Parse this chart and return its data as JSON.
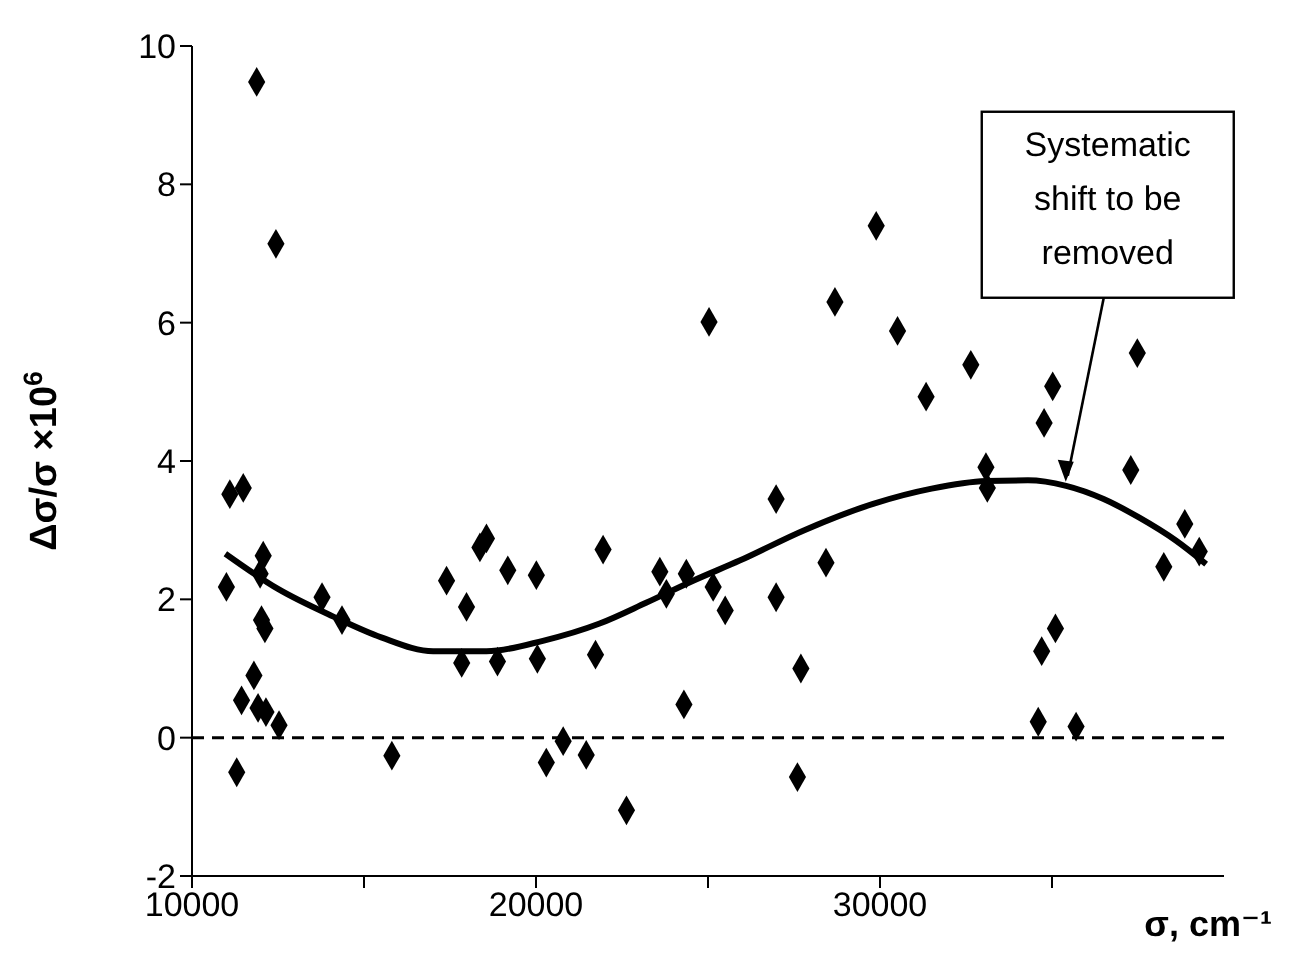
{
  "chart_data": {
    "type": "scatter",
    "xlabel": "σ, cm⁻¹",
    "ylabel": "Δσ/σ ×10$^{6}$",
    "xlim": [
      10000,
      40000
    ],
    "xticks": [
      10000,
      {
        "value": 15000,
        "label": null
      },
      20000,
      {
        "value": 25000,
        "label": null
      },
      30000,
      {
        "value": 35000,
        "label": null
      }
    ],
    "ylim": [
      -2,
      10
    ],
    "yticks": [
      -2,
      0,
      2,
      4,
      6,
      8,
      10
    ],
    "series": [
      {
        "color": "#000000",
        "marker": "diamond",
        "x": [
          11000,
          11100,
          11300,
          11440,
          11490,
          11800,
          11880,
          11920,
          11980,
          12020,
          12070,
          12120,
          12150,
          12440,
          12530,
          13780,
          14360,
          15810,
          17400,
          17840,
          17980,
          18370,
          18560,
          18880,
          19180,
          20010,
          20040,
          20300,
          20790,
          21460,
          21730,
          21950,
          22630,
          23600,
          23790,
          24300,
          24370,
          25030,
          25150,
          25500,
          26980,
          26980,
          27600,
          27700,
          28430,
          28690,
          29890,
          30510,
          31340,
          32640,
          33080,
          33120,
          34600,
          34700,
          34770,
          35020,
          35100,
          35700,
          37290,
          37480,
          38250,
          38860,
          39280
        ],
        "values": [
          2.18,
          3.52,
          -0.5,
          0.54,
          3.61,
          0.9,
          9.48,
          0.43,
          2.37,
          1.7,
          2.63,
          1.58,
          0.37,
          7.14,
          0.18,
          2.03,
          1.7,
          -0.26,
          2.27,
          1.08,
          1.89,
          2.75,
          2.88,
          1.1,
          2.42,
          2.35,
          1.14,
          -0.36,
          -0.05,
          -0.25,
          1.2,
          2.72,
          -1.05,
          2.4,
          2.08,
          0.48,
          2.37,
          6.01,
          2.18,
          1.84,
          3.45,
          2.03,
          -0.57,
          1.0,
          2.53,
          6.3,
          7.4,
          5.88,
          4.93,
          5.39,
          3.91,
          3.61,
          0.23,
          1.25,
          4.55,
          5.08,
          1.58,
          0.16,
          3.87,
          5.56,
          2.47,
          3.09,
          2.69
        ]
      },
      {
        "type": "line",
        "color": "#000000",
        "marker": "none",
        "line_style": "solid",
        "x": [
          10970,
          12500,
          14110,
          15500,
          17010,
          18560,
          20200,
          21850,
          23200,
          24570,
          25920,
          27800,
          29800,
          31500,
          33080,
          34300,
          35410,
          36500,
          37540,
          38600,
          39480
        ],
        "values": [
          2.66,
          2.15,
          1.75,
          1.45,
          1.25,
          1.25,
          1.4,
          1.65,
          1.95,
          2.27,
          2.56,
          3.0,
          3.38,
          3.6,
          3.71,
          3.72,
          3.64,
          3.45,
          3.18,
          2.85,
          2.51
        ]
      }
    ],
    "ref_lines": [
      {
        "axis": "y",
        "value": 0,
        "color": "#000000",
        "line_style": "dashed"
      }
    ],
    "annotations": [
      {
        "text": "Systematic\nshift to be\nremoved",
        "x": 35400,
        "y": 3.7
      }
    ]
  }
}
